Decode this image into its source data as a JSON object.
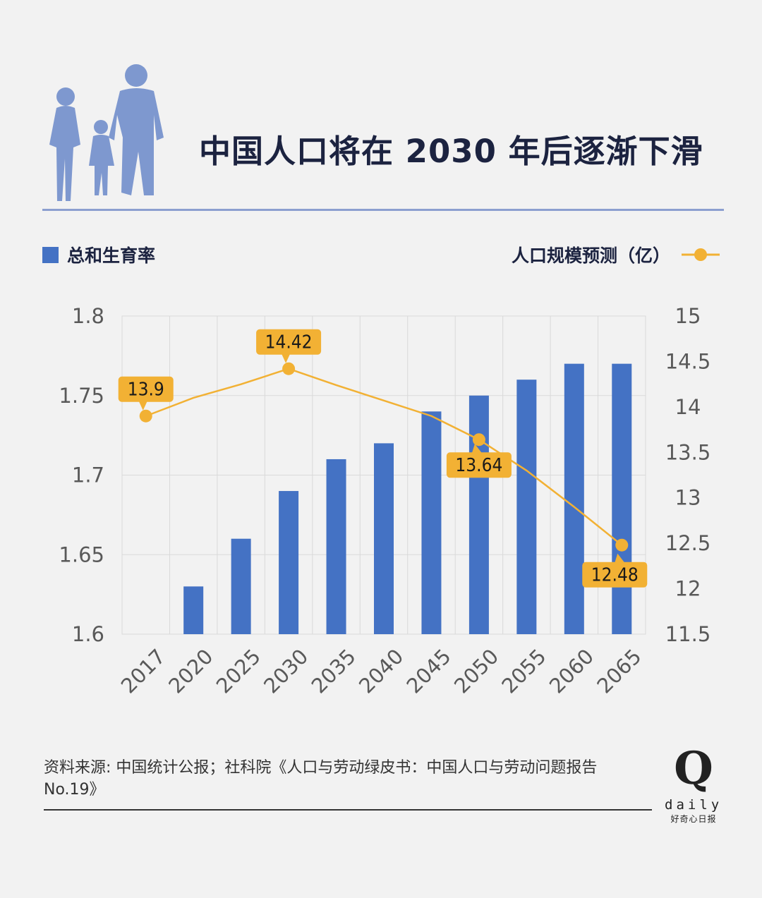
{
  "title": "中国人口将在 2030 年后逐渐下滑",
  "legend": {
    "bar_label": "总和生育率",
    "line_label": "人口规模预测（亿）"
  },
  "source_text": "资料来源: 中国统计公报；社科院《人口与劳动绿皮书：中国人口与劳动问题报告 No.19》",
  "logo": {
    "mark": "Q",
    "word": "daily",
    "caption": "好奇心日报"
  },
  "colors": {
    "bar": "#4472c4",
    "line": "#f2b134",
    "title": "#1c2340",
    "rule": "#8c9fd0",
    "grid": "#d9d9d9",
    "tick": "#595959"
  },
  "chart_data": {
    "type": "bar+line",
    "categories": [
      "2017",
      "2020",
      "2025",
      "2030",
      "2035",
      "2040",
      "2045",
      "2050",
      "2055",
      "2060",
      "2065"
    ],
    "series": [
      {
        "name": "总和生育率",
        "type": "bar",
        "axis": "left",
        "values": [
          1.6,
          1.63,
          1.66,
          1.69,
          1.71,
          1.72,
          1.74,
          1.75,
          1.76,
          1.77,
          1.77
        ]
      },
      {
        "name": "人口规模预测（亿）",
        "type": "line",
        "axis": "right",
        "values": [
          13.9,
          14.1,
          14.25,
          14.42,
          14.24,
          14.07,
          13.9,
          13.64,
          13.3,
          12.9,
          12.48
        ]
      }
    ],
    "callouts": [
      {
        "category": "2017",
        "label": "13.9",
        "position": "above"
      },
      {
        "category": "2030",
        "label": "14.42",
        "position": "above"
      },
      {
        "category": "2050",
        "label": "13.64",
        "position": "below"
      },
      {
        "category": "2065",
        "label": "12.48",
        "position": "below"
      }
    ],
    "y_left": {
      "ylim": [
        1.6,
        1.8
      ],
      "ticks": [
        "1.6",
        "1.65",
        "1.7",
        "1.75",
        "1.8"
      ]
    },
    "y_right": {
      "ylim": [
        11.5,
        15
      ],
      "ticks": [
        "11.5",
        "12",
        "12.5",
        "13",
        "13.5",
        "14",
        "14.5",
        "15"
      ]
    },
    "grid": true,
    "legend_position": "top"
  }
}
